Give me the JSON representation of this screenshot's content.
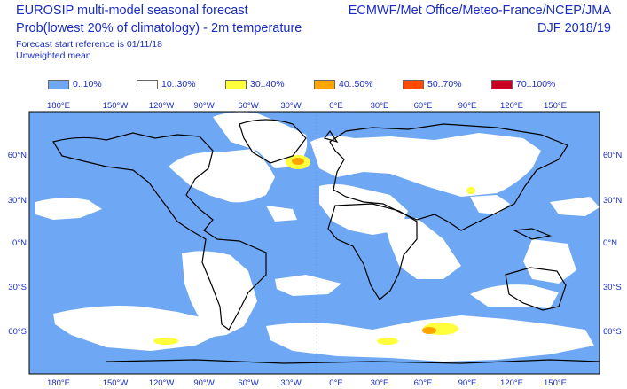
{
  "header": {
    "title_line1": "EUROSIP multi-model seasonal forecast",
    "title_line2": "Prob(lowest 20% of climatology) - 2m temperature",
    "forecast_reference": "Forecast start reference is 01/11/18",
    "weighting": "Unweighted mean",
    "agencies": "ECMWF/Met Office/Meteo-France/NCEP/JMA",
    "season": "DJF 2018/19"
  },
  "legend": [
    {
      "label": "0..10%",
      "color": "#6ea8f4"
    },
    {
      "label": "10..30%",
      "color": "#ffffff"
    },
    {
      "label": "30..40%",
      "color": "#ffff3c"
    },
    {
      "label": "40..50%",
      "color": "#ffa500"
    },
    {
      "label": "50..70%",
      "color": "#ff4a00"
    },
    {
      "label": "70..100%",
      "color": "#cc0022"
    }
  ],
  "map": {
    "projection": "cylindrical",
    "lon_labels": [
      "180°E",
      "150°W",
      "120°W",
      "90°W",
      "60°W",
      "30°W",
      "0°E",
      "30°E",
      "60°E",
      "90°E",
      "120°E",
      "150°E"
    ],
    "lat_labels": [
      "60°N",
      "30°N",
      "0°N",
      "30°S",
      "60°S"
    ]
  },
  "colors": {
    "text": "#1a2cc4",
    "ocean_low_prob": "#6ea8f4",
    "mid_prob": "#ffffff",
    "coast": "#000000"
  }
}
